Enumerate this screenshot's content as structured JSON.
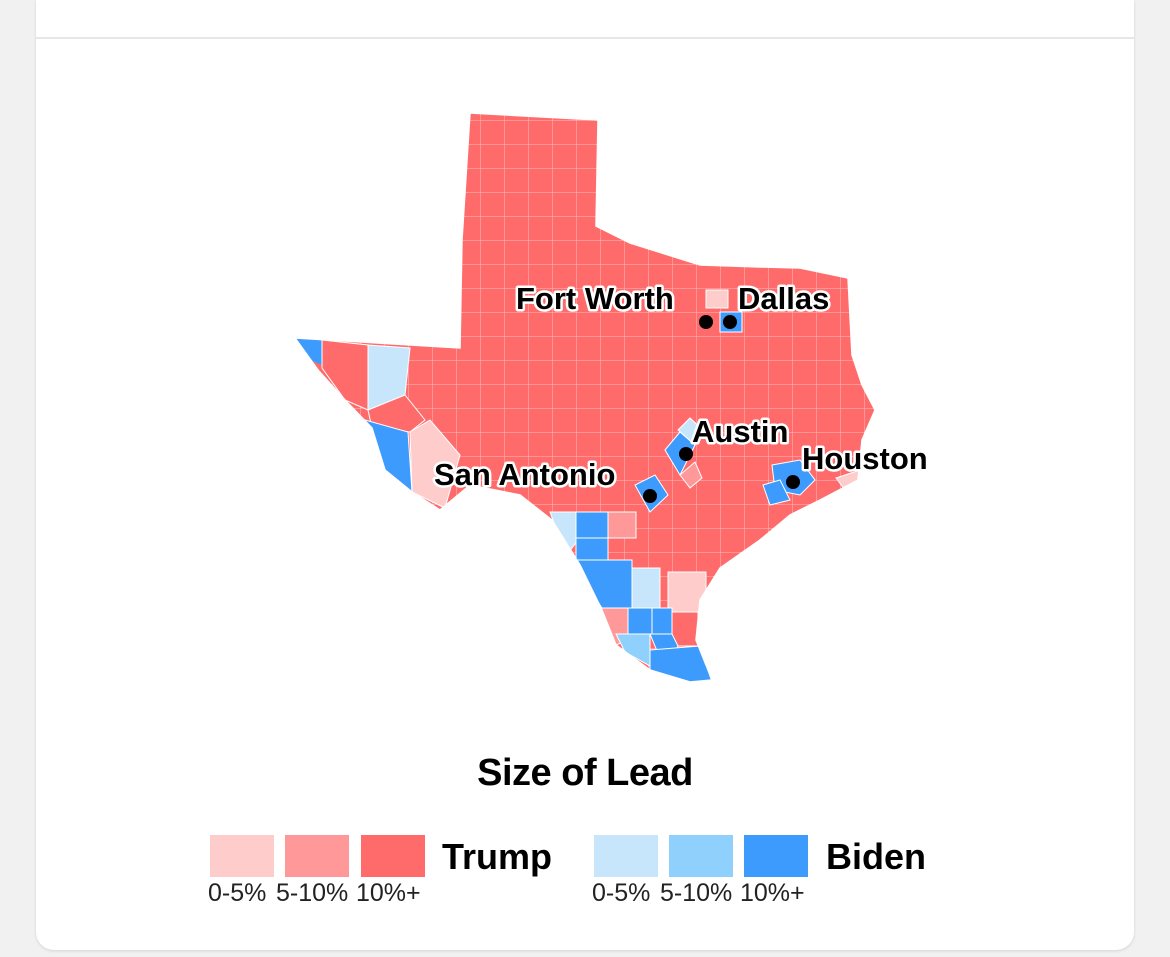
{
  "cities": [
    {
      "name": "Fort Worth"
    },
    {
      "name": "Dallas"
    },
    {
      "name": "Austin"
    },
    {
      "name": "San Antonio"
    },
    {
      "name": "Houston"
    }
  ],
  "legend": {
    "title": "Size of Lead",
    "trump": {
      "name": "Trump",
      "ranges": [
        "0-5%",
        "5-10%",
        "10%+"
      ],
      "colors": [
        "#ffcccc",
        "#ff9999",
        "#ff6b6b"
      ]
    },
    "biden": {
      "name": "Biden",
      "ranges": [
        "0-5%",
        "5-10%",
        "10%+"
      ],
      "colors": [
        "#c8e6fb",
        "#90d0fd",
        "#3d9bfd"
      ]
    }
  }
}
